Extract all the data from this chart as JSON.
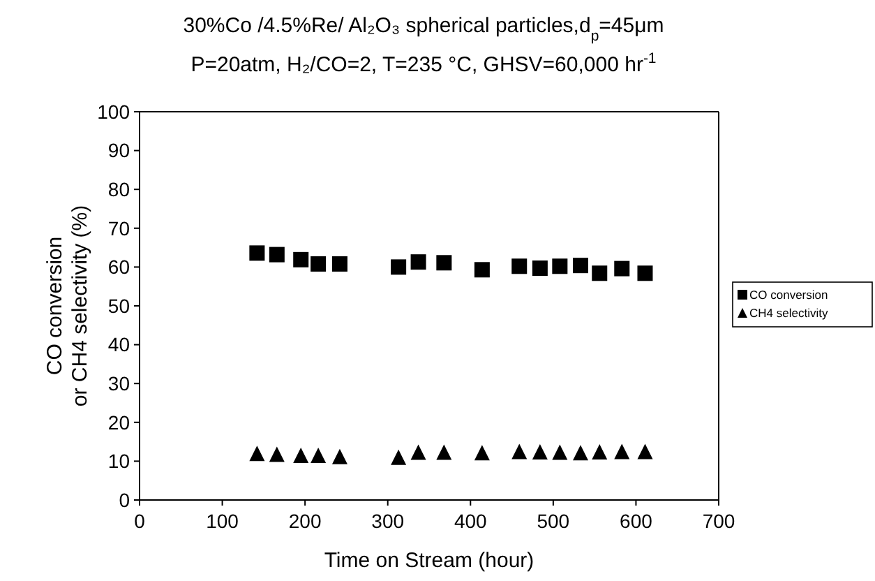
{
  "chart_data": {
    "type": "scatter",
    "title": "30%Co /4.5%Re/ Al₂O₃ spherical particles,d$_{p}$=45μm",
    "subtitle": "P=20atm, H₂/CO=2, T=235 °C, GHSV=60,000 hr$^{-1}$",
    "xlabel": "Time on Stream (hour)",
    "ylabel": "CO conversion\nor CH4 selectivity (%)",
    "x": [
      142,
      166,
      195,
      216,
      242,
      313,
      337,
      368,
      414,
      459,
      484,
      508,
      533,
      556,
      583,
      611
    ],
    "series": [
      {
        "name": "CO conversion",
        "color": "#000000",
        "marker": "square",
        "values": [
          63.6,
          63.2,
          61.9,
          60.8,
          60.8,
          60.0,
          61.3,
          61.1,
          59.3,
          60.2,
          59.7,
          60.2,
          60.4,
          58.4,
          59.6,
          58.4
        ]
      },
      {
        "name": "CH4 selectivity",
        "color": "#000000",
        "marker": "triangle",
        "values": [
          12,
          11.8,
          11.5,
          11.5,
          11.2,
          11,
          12.3,
          12.3,
          12.2,
          12.5,
          12.4,
          12.3,
          12.2,
          12.4,
          12.5,
          12.5
        ]
      }
    ],
    "xlim": [
      0,
      700
    ],
    "xticks": [
      0,
      100,
      200,
      300,
      400,
      500,
      600,
      700
    ],
    "ylim": [
      0,
      100
    ],
    "yticks": [
      0,
      10,
      20,
      30,
      40,
      50,
      60,
      70,
      80,
      90,
      100
    ],
    "grid": false,
    "legend": "right"
  }
}
